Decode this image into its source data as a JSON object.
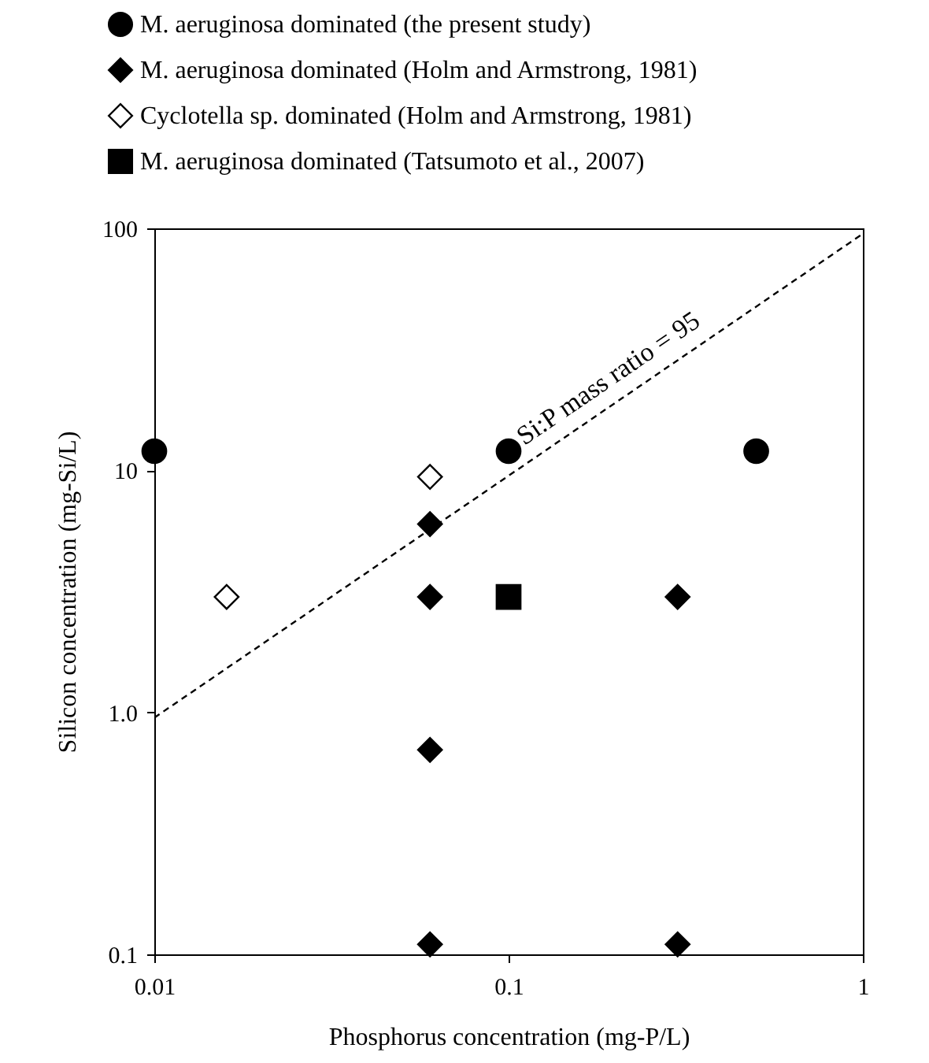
{
  "chart_data": {
    "type": "scatter",
    "xlabel": "Phosphorus concentration (mg-P/L)",
    "ylabel": "Silicon concentration (mg-Si/L)",
    "log": "xy",
    "xlim": [
      0.01,
      1
    ],
    "xticks": [
      0.01,
      0.1,
      1
    ],
    "ylim": [
      0.1,
      100
    ],
    "yticks": [
      0.1,
      {
        "value": 1,
        "label": "1.0"
      },
      10,
      100
    ],
    "grid": false,
    "legend": "top",
    "series": [
      {
        "name": "M. aeruginosa dominated (the present study)",
        "color": "#000000",
        "marker": "circle",
        "x": [
          0.01,
          0.1,
          0.5
        ],
        "values": [
          12,
          12,
          12
        ]
      },
      {
        "name": "M. aeruginosa dominated (Holm and Armstrong, 1981)",
        "color": "#000000",
        "marker": "diamond",
        "x": [
          0.06,
          0.06,
          0.06,
          0.06,
          0.3,
          0.3
        ],
        "values": [
          6,
          3,
          0.7,
          0.11,
          3,
          0.11
        ]
      },
      {
        "name": "Cyclotella sp. dominated (Holm and Armstrong, 1981)",
        "color": "#ffffff",
        "marker": "diamond",
        "x": [
          0.016,
          0.06
        ],
        "values": [
          3,
          9.4
        ]
      },
      {
        "name": "M. aeruginosa dominated (Tatsumoto et al., 2007)",
        "color": "#000000",
        "marker": "square",
        "x": [
          0.1
        ],
        "values": [
          3
        ]
      },
      {
        "type": "line",
        "color": "#000000",
        "line_style": "dashed",
        "x": [
          0.01,
          1
        ],
        "values": [
          0.95,
          95
        ]
      }
    ],
    "annotations": [
      "Si:P mass ratio = 95"
    ]
  }
}
